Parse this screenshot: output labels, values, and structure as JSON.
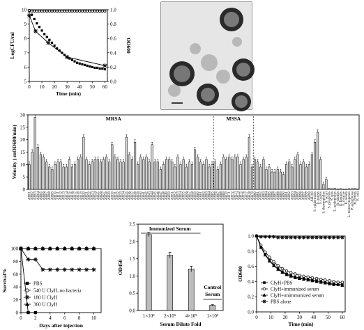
{
  "chart_data": [
    {
      "id": "A",
      "type": "line",
      "xlabel": "Time (min)",
      "ylabel_left": "LogCFU/ml",
      "ylabel_right": "OD600",
      "xlim": [
        0,
        62
      ],
      "ylim_left": [
        5,
        10
      ],
      "ylim_right": [
        0,
        1.0
      ],
      "xticks": [
        "0",
        "10",
        "20",
        "30",
        "40",
        "50",
        "60"
      ],
      "yticks_left": [
        "5",
        "6",
        "7",
        "8",
        "9",
        "10"
      ],
      "yticks_right": [
        "0.0",
        "0.2",
        "0.4",
        "0.6",
        "0.8",
        "1.0"
      ],
      "series": [
        {
          "axis": "left",
          "marker": "star",
          "x": [
            0,
            5,
            15,
            30,
            60
          ],
          "y": [
            9.6,
            8.5,
            7.7,
            6.7,
            6.1
          ]
        },
        {
          "axis": "right",
          "marker": "square",
          "x": [
            0,
            2,
            4,
            6,
            8,
            10,
            12,
            14,
            16,
            18,
            20,
            22,
            24,
            26,
            28,
            30,
            32,
            34,
            36,
            38,
            40,
            42,
            44,
            46,
            48,
            50,
            52,
            54,
            56,
            58,
            60
          ],
          "y": [
            0.98,
            0.93,
            0.87,
            0.81,
            0.76,
            0.71,
            0.66,
            0.62,
            0.58,
            0.54,
            0.5,
            0.46,
            0.43,
            0.4,
            0.37,
            0.34,
            0.32,
            0.3,
            0.28,
            0.26,
            0.25,
            0.24,
            0.23,
            0.22,
            0.21,
            0.2,
            0.19,
            0.19,
            0.18,
            0.18,
            0.17
          ]
        },
        {
          "axis": "right",
          "marker": "circle",
          "x": [
            0,
            2,
            4,
            6,
            8,
            10,
            12,
            14,
            16,
            18,
            20,
            22,
            24,
            26,
            28,
            30,
            32,
            34,
            36,
            38,
            40,
            42,
            44,
            46,
            48,
            50,
            52,
            54,
            56,
            58,
            60
          ],
          "y": [
            0.99,
            0.98,
            0.98,
            0.98,
            0.98,
            0.98,
            0.98,
            0.98,
            0.98,
            0.98,
            0.98,
            0.98,
            0.98,
            0.98,
            0.98,
            0.98,
            0.98,
            0.98,
            0.98,
            0.98,
            0.98,
            0.98,
            0.98,
            0.98,
            0.98,
            0.98,
            0.98,
            0.98,
            0.98,
            0.98,
            0.98
          ]
        }
      ]
    },
    {
      "id": "B",
      "type": "bar",
      "ylabel": "Velocity (-mOD600/min)",
      "ylim": [
        0,
        30
      ],
      "yticks": [
        "0",
        "5",
        "10",
        "15",
        "20",
        "25",
        "30"
      ],
      "group_labels": [
        "MRSA",
        "MSSA"
      ],
      "categories": [
        "AH01",
        "AH02",
        "AH03",
        "AH04",
        "AH05",
        "AH06",
        "AH07",
        "AH08",
        "AH09",
        "AH10",
        "AH11",
        "AH12",
        "AH13",
        "AH14",
        "AH15",
        "AH16",
        "AH17",
        "AH18",
        "AH19",
        "AH20",
        "AH21",
        "AH22",
        "AH23",
        "AH24",
        "AH25",
        "AH26",
        "AH27",
        "AH28",
        "AH29",
        "AH30",
        "AH31",
        "AH32",
        "AH33",
        "AH34",
        "AH35",
        "AH36",
        "AH37",
        "AH38",
        "AH39",
        "AH40",
        "AH41",
        "AH42",
        "AH43",
        "AH44",
        "AH45",
        "AH46",
        "AH47",
        "AH48",
        "AH49",
        "AH50",
        "AH51",
        "AH52",
        "AH53",
        "AH54",
        "AH55",
        "AH56",
        "AH57",
        "AH58",
        "AH59",
        "AH60",
        "AH61",
        "AH62",
        "AH63",
        "AH64",
        "AH65",
        "AH66",
        "AH67",
        "AH68",
        "AH69",
        "AH70",
        "AH71",
        "AH72",
        "AH73",
        "AH74",
        "AH75",
        "AH76",
        "AH77",
        "AH78",
        "AH79",
        "AH80",
        "AH81",
        "AH82",
        "AH83",
        "AH84",
        "AH85",
        "AH86",
        "AH87",
        "AH88",
        "AH89",
        "AH90",
        "AH91",
        "AH92",
        "AH93",
        "AH94",
        "AH95",
        "AH96",
        "AH97",
        "AH98",
        "AH99",
        "AH100",
        "S. epidermidis",
        "S. aureus",
        "S. capitis",
        "S. thermophilus",
        "S. sciuri",
        "S. pyogenes",
        "S. suis",
        "L. acidophilus",
        "B. subtilis",
        "E. faecalis",
        "E. cloacae",
        "E. avium",
        "L. monocytogenes",
        "P. aeruginosa",
        "B. cereus",
        "E. coli"
      ],
      "values": [
        10,
        15,
        29,
        17,
        14,
        13,
        11,
        9,
        8,
        10,
        11,
        11,
        9,
        9,
        12,
        9,
        10,
        12,
        13,
        21,
        12,
        10,
        11,
        12,
        12,
        11,
        12,
        13,
        11,
        18,
        13,
        12,
        11,
        11,
        21,
        14,
        12,
        19,
        10,
        13,
        12,
        13,
        11,
        18,
        11,
        11,
        8,
        10,
        12,
        12,
        11,
        9,
        13,
        10,
        12,
        9,
        11,
        10,
        16,
        13,
        11,
        10,
        12,
        9,
        10,
        11,
        8,
        10,
        13,
        12,
        13,
        12,
        13,
        13,
        10,
        12,
        13,
        21,
        9,
        12,
        11,
        9,
        12,
        8,
        9,
        7,
        7,
        8,
        7,
        6,
        10,
        11,
        9,
        12,
        14,
        10,
        11,
        9,
        10,
        14,
        19,
        23,
        12,
        2,
        4,
        0.4,
        0.3,
        0.4,
        0.2,
        0.3,
        0.2,
        0.2,
        0.3,
        0.3,
        0.4,
        0.2
      ]
    },
    {
      "id": "C",
      "type": "line",
      "xlabel": "Days after injection",
      "ylabel": "Survival%",
      "xlim": [
        0,
        11
      ],
      "ylim": [
        0,
        100
      ],
      "xticks": [
        "0",
        "2",
        "4",
        "6",
        "8",
        "10"
      ],
      "yticks": [
        "0",
        "20",
        "40",
        "60",
        "80",
        "100"
      ],
      "legend": [
        "PBS",
        "540 U ClyH, no bacteria",
        "180 U ClyH",
        "360 U ClyH"
      ],
      "series": [
        {
          "name": "PBS",
          "marker": "square",
          "x": [
            0,
            1,
            2
          ],
          "y": [
            100,
            0,
            0
          ]
        },
        {
          "name": "540 U ClyH, no bacteria",
          "marker": "circle",
          "x": [
            0,
            1,
            2,
            3,
            4,
            5,
            6,
            7,
            8,
            9,
            10
          ],
          "y": [
            100,
            100,
            100,
            100,
            100,
            100,
            100,
            100,
            100,
            100,
            100
          ]
        },
        {
          "name": "180 U ClyH",
          "marker": "star",
          "x": [
            0,
            1,
            2,
            3,
            4,
            5,
            6,
            7,
            8,
            9,
            10
          ],
          "y": [
            100,
            83,
            83,
            67,
            67,
            67,
            67,
            67,
            67,
            67,
            67
          ]
        },
        {
          "name": "360 U ClyH",
          "marker": "triangle",
          "x": [
            0,
            1,
            2,
            3,
            4,
            5,
            6,
            7,
            8,
            9,
            10
          ],
          "y": [
            100,
            100,
            100,
            100,
            100,
            100,
            100,
            100,
            100,
            100,
            100
          ]
        }
      ]
    },
    {
      "id": "D",
      "type": "bar",
      "xlabel": "Serum Dilute Fold",
      "ylabel": "OD450",
      "ylim": [
        0,
        2.5
      ],
      "yticks": [
        "0.0",
        "0.5",
        "1.0",
        "1.5",
        "2.0",
        "2.5"
      ],
      "categories": [
        "1×10⁵",
        "2×10⁵",
        "4×10⁵",
        "1×10³"
      ],
      "values": [
        2.2,
        1.6,
        1.2,
        0.15
      ],
      "errors": [
        0.06,
        0.08,
        0.08,
        0.02
      ],
      "annotations": [
        "Immunized Serum",
        "Control",
        "Serum"
      ]
    },
    {
      "id": "E",
      "type": "line",
      "xlabel": "Time (min)",
      "ylabel": "OD600",
      "xlim": [
        0,
        62
      ],
      "ylim": [
        0,
        1.0
      ],
      "xticks": [
        "0",
        "10",
        "20",
        "30",
        "40",
        "50",
        "60"
      ],
      "yticks": [
        "0.0",
        "0.2",
        "0.4",
        "0.6",
        "0.8",
        "1.0"
      ],
      "legend": [
        "ClyH+PBS",
        "ClyH+immunized serum",
        "ClyH+unimmunized serum",
        "PBS alone"
      ],
      "series": [
        {
          "name": "ClyH+PBS",
          "marker": "square",
          "x": [
            0,
            3,
            6,
            9,
            12,
            15,
            18,
            21,
            24,
            27,
            30,
            33,
            36,
            39,
            42,
            45,
            48,
            51,
            54,
            57,
            60
          ],
          "y": [
            1.0,
            0.86,
            0.76,
            0.68,
            0.62,
            0.57,
            0.53,
            0.5,
            0.48,
            0.46,
            0.45,
            0.44,
            0.43,
            0.42,
            0.41,
            0.4,
            0.39,
            0.38,
            0.37,
            0.36,
            0.36
          ]
        },
        {
          "name": "ClyH+immunized serum",
          "marker": "circle",
          "x": [
            0,
            3,
            6,
            9,
            12,
            15,
            18,
            21,
            24,
            27,
            30,
            33,
            36,
            39,
            42,
            45,
            48,
            51,
            54,
            57,
            60
          ],
          "y": [
            1.0,
            0.88,
            0.79,
            0.72,
            0.66,
            0.61,
            0.57,
            0.54,
            0.52,
            0.5,
            0.48,
            0.47,
            0.46,
            0.45,
            0.44,
            0.43,
            0.42,
            0.41,
            0.4,
            0.39,
            0.39
          ]
        },
        {
          "name": "ClyH+unimmunized serum",
          "marker": "triangle",
          "x": [
            0,
            3,
            6,
            9,
            12,
            15,
            18,
            21,
            24,
            27,
            30,
            33,
            36,
            39,
            42,
            45,
            48,
            51,
            54,
            57,
            60
          ],
          "y": [
            1.0,
            0.85,
            0.75,
            0.67,
            0.61,
            0.56,
            0.52,
            0.49,
            0.47,
            0.45,
            0.44,
            0.43,
            0.42,
            0.41,
            0.4,
            0.39,
            0.38,
            0.37,
            0.36,
            0.36,
            0.35
          ]
        },
        {
          "name": "PBS alone",
          "marker": "star",
          "x": [
            0,
            3,
            6,
            9,
            12,
            15,
            18,
            21,
            24,
            27,
            30,
            33,
            36,
            39,
            42,
            45,
            48,
            51,
            54,
            57,
            60
          ],
          "y": [
            1.0,
            0.99,
            0.99,
            0.99,
            0.99,
            0.98,
            0.98,
            0.98,
            0.98,
            0.98,
            0.98,
            0.98,
            0.98,
            0.98,
            0.98,
            0.98,
            0.98,
            0.98,
            0.98,
            0.98,
            0.98
          ]
        }
      ]
    }
  ]
}
